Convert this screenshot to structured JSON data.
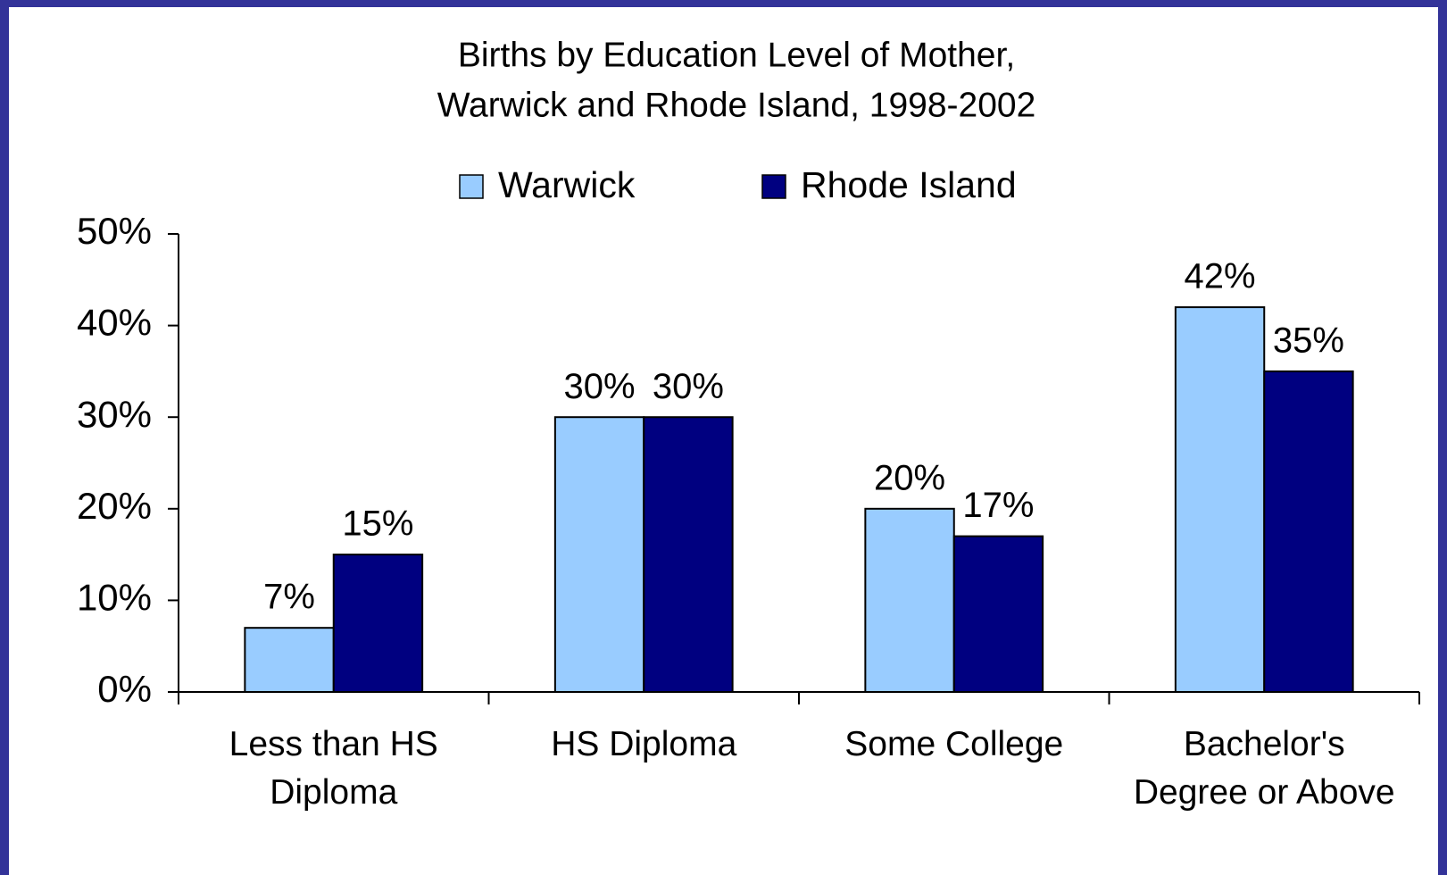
{
  "chart_data": {
    "type": "bar",
    "title": [
      "Births by Education Level of Mother,",
      "Warwick and Rhode Island, 1998-2002"
    ],
    "categories": [
      "Less than HS Diploma",
      "HS Diploma",
      "Some College",
      "Bachelor's Degree or Above"
    ],
    "series": [
      {
        "name": "Warwick",
        "color": "#99ccff",
        "values": [
          7,
          30,
          20,
          42
        ],
        "value_labels": [
          "7%",
          "30%",
          "20%",
          "42%"
        ]
      },
      {
        "name": "Rhode Island",
        "color": "#000080",
        "values": [
          15,
          30,
          17,
          35
        ],
        "value_labels": [
          "15%",
          "30%",
          "17%",
          "35%"
        ]
      }
    ],
    "ylim": [
      0,
      50
    ],
    "yticks": [
      {
        "value": 0,
        "label": "0%"
      },
      {
        "value": 10,
        "label": "10%"
      },
      {
        "value": 20,
        "label": "20%"
      },
      {
        "value": 30,
        "label": "30%"
      },
      {
        "value": 40,
        "label": "40%"
      },
      {
        "value": 50,
        "label": "50%"
      }
    ],
    "legend": "top"
  }
}
